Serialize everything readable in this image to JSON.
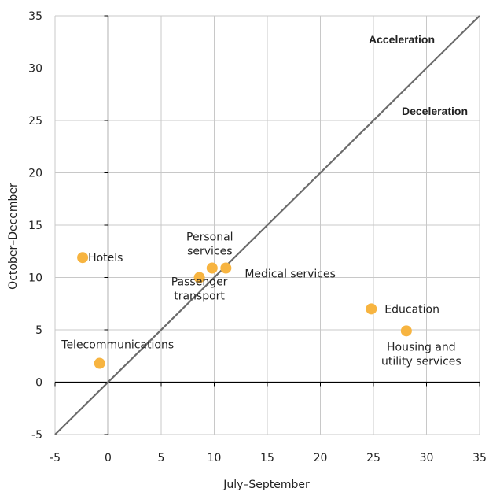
{
  "chart_data": {
    "type": "scatter",
    "title": "",
    "xlabel": "July–September",
    "ylabel": "October–December",
    "xlim": [
      -5,
      35
    ],
    "ylim": [
      -5,
      35
    ],
    "xticks": [
      "-5",
      "0",
      "5",
      "10",
      "15",
      "20",
      "25",
      "30",
      "35"
    ],
    "yticks": [
      "-5",
      "0",
      "5",
      "10",
      "15",
      "20",
      "25",
      "30",
      "35"
    ],
    "grid": true,
    "diagonal_line": {
      "from": [
        -5,
        -5
      ],
      "to": [
        35,
        35
      ]
    },
    "region_labels": {
      "above": "Acceleration",
      "below": "Deceleration"
    },
    "points": [
      {
        "x": -2.4,
        "y": 11.9,
        "label_lines": [
          "Hotels"
        ]
      },
      {
        "x": -0.8,
        "y": 1.8,
        "label_lines": [
          "Telecommunications"
        ]
      },
      {
        "x": 8.6,
        "y": 10.0,
        "label_lines": [
          "Passenger",
          "transport"
        ]
      },
      {
        "x": 9.8,
        "y": 10.9,
        "label_lines": [
          "Personal",
          "services"
        ]
      },
      {
        "x": 11.1,
        "y": 10.9,
        "label_lines": [
          "Medical services"
        ]
      },
      {
        "x": 24.8,
        "y": 7.0,
        "label_lines": [
          "Education"
        ]
      },
      {
        "x": 28.1,
        "y": 4.9,
        "label_lines": [
          "Housing and",
          "utility services"
        ]
      }
    ],
    "colors": {
      "points": "#F7B440",
      "diagonal": "#6B6B6B",
      "grid": "#C8C8C8",
      "axis": "#000000"
    }
  }
}
